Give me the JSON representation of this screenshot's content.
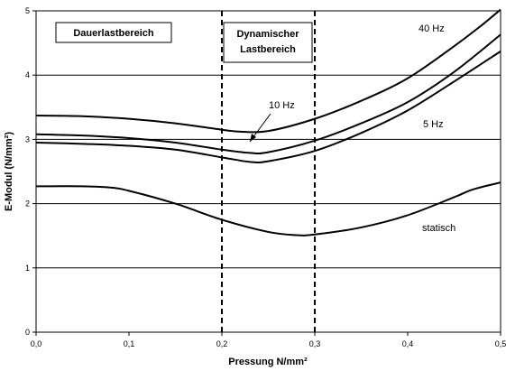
{
  "chart_data": {
    "type": "line",
    "xlabel": "Pressung N/mm²",
    "ylabel": "E-Modul (N/mm²)",
    "xlim": [
      0,
      0.5
    ],
    "ylim": [
      0,
      5
    ],
    "x_ticks": [
      "0,0",
      "0,1",
      "0,2",
      "0,3",
      "0,4",
      "0,5"
    ],
    "y_ticks": [
      "0",
      "1",
      "2",
      "3",
      "4",
      "5"
    ],
    "grid": "horizontal",
    "series": [
      {
        "name": "40 Hz",
        "x": [
          0,
          0.05,
          0.1,
          0.15,
          0.2,
          0.22,
          0.25,
          0.3,
          0.35,
          0.4,
          0.45,
          0.48,
          0.5
        ],
        "y": [
          3.37,
          3.36,
          3.32,
          3.25,
          3.15,
          3.12,
          3.13,
          3.32,
          3.6,
          3.95,
          4.45,
          4.78,
          5.02
        ]
      },
      {
        "name": "10 Hz",
        "x": [
          0,
          0.05,
          0.1,
          0.15,
          0.2,
          0.23,
          0.25,
          0.3,
          0.35,
          0.4,
          0.45,
          0.5
        ],
        "y": [
          3.08,
          3.06,
          3.02,
          2.95,
          2.84,
          2.79,
          2.8,
          2.98,
          3.25,
          3.58,
          4.05,
          4.63
        ]
      },
      {
        "name": "5 Hz",
        "x": [
          0,
          0.05,
          0.1,
          0.15,
          0.2,
          0.23,
          0.25,
          0.3,
          0.35,
          0.4,
          0.45,
          0.5
        ],
        "y": [
          2.95,
          2.93,
          2.9,
          2.84,
          2.72,
          2.65,
          2.66,
          2.82,
          3.1,
          3.45,
          3.9,
          4.37
        ]
      },
      {
        "name": "statisch",
        "x": [
          0,
          0.05,
          0.08,
          0.1,
          0.15,
          0.2,
          0.25,
          0.28,
          0.3,
          0.35,
          0.4,
          0.45,
          0.47,
          0.5
        ],
        "y": [
          2.27,
          2.27,
          2.25,
          2.2,
          2.0,
          1.75,
          1.56,
          1.51,
          1.52,
          1.63,
          1.82,
          2.1,
          2.22,
          2.33
        ]
      }
    ],
    "vlines": [
      0.2,
      0.3
    ],
    "regions": [
      "Dauerlastbereich",
      "Dynamischer",
      "Lastbereich"
    ]
  }
}
